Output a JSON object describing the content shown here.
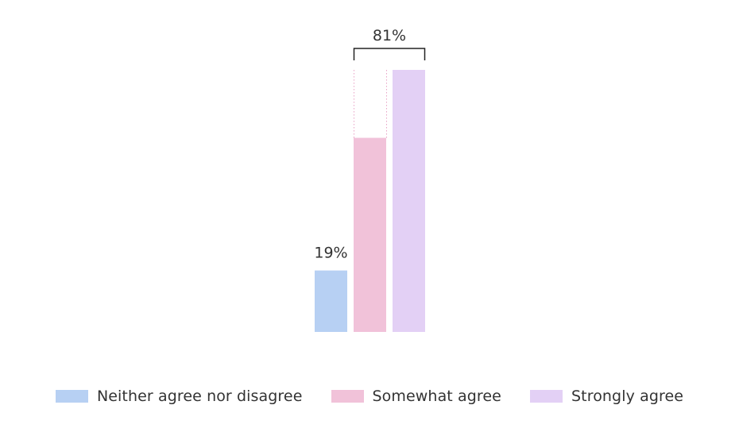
{
  "chart_data": {
    "type": "bar",
    "title": "",
    "xlabel": "",
    "ylabel": "",
    "ylim": [
      0,
      81
    ],
    "grid": false,
    "legend_placement": "bottom",
    "series": [
      {
        "name": "Neither agree nor disagree",
        "value": 19,
        "label": "19%",
        "color": "#b7d0f3"
      },
      {
        "name": "Somewhat agree",
        "value": 60,
        "label": "",
        "color": "#f1c2d9"
      },
      {
        "name": "Strongly agree",
        "value": 81,
        "label": "",
        "color": "#e3d0f5"
      }
    ],
    "bracket": {
      "series": [
        "Somewhat agree",
        "Strongly agree"
      ],
      "label": "81%"
    }
  }
}
